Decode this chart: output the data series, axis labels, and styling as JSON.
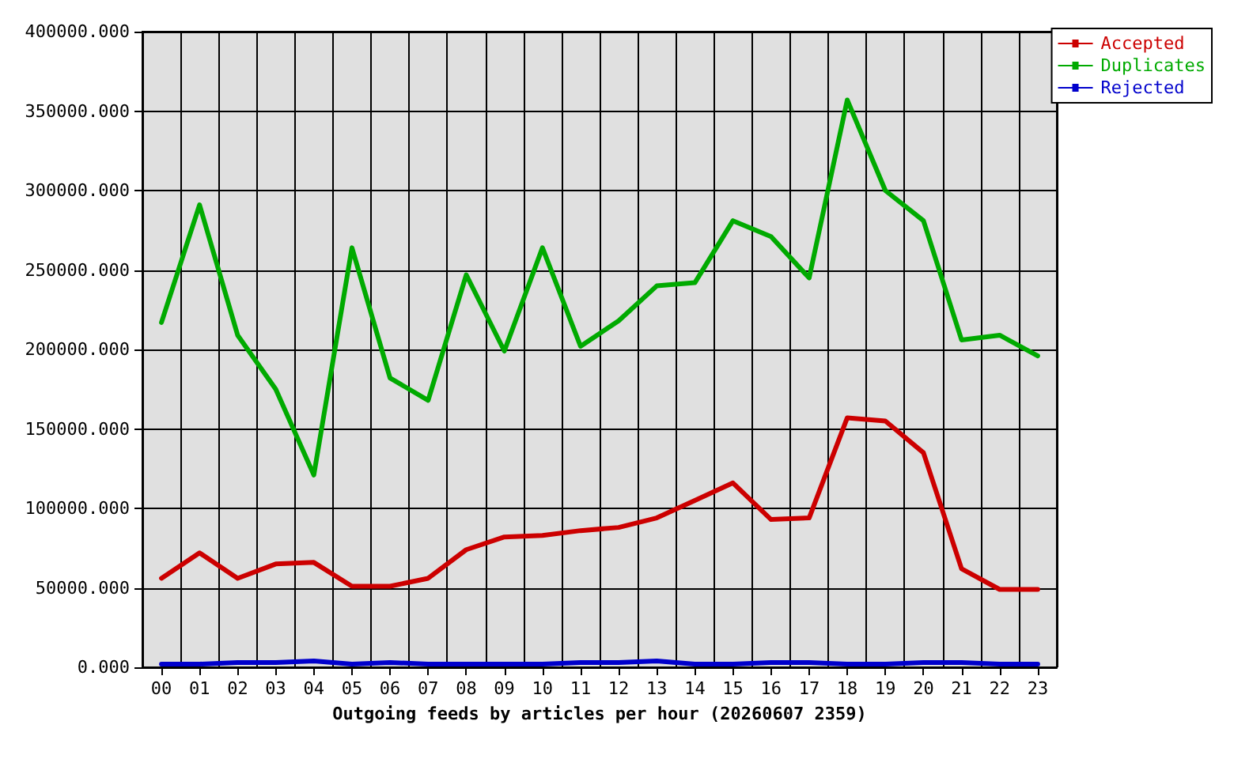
{
  "chart_data": {
    "type": "line",
    "xlabel": "Outgoing feeds by articles per hour (20260607 2359)",
    "categories": [
      "00",
      "01",
      "02",
      "03",
      "04",
      "05",
      "06",
      "07",
      "08",
      "09",
      "10",
      "11",
      "12",
      "13",
      "14",
      "15",
      "16",
      "17",
      "18",
      "19",
      "20",
      "21",
      "22",
      "23"
    ],
    "series": [
      {
        "name": "Accepted",
        "color": "#cc0000",
        "values": [
          56000,
          72000,
          56000,
          65000,
          66000,
          51000,
          51000,
          56000,
          74000,
          82000,
          83000,
          86000,
          88000,
          94000,
          105000,
          116000,
          93000,
          94000,
          157000,
          155000,
          135000,
          62000,
          49000,
          49000
        ]
      },
      {
        "name": "Duplicates",
        "color": "#00aa00",
        "values": [
          217000,
          291000,
          209000,
          175000,
          121000,
          264000,
          182000,
          168000,
          247000,
          199000,
          264000,
          202000,
          218000,
          240000,
          242000,
          281000,
          271000,
          245000,
          357000,
          300000,
          281000,
          206000,
          209000,
          196000
        ]
      },
      {
        "name": "Rejected",
        "color": "#0000cc",
        "values": [
          2000,
          2000,
          3000,
          3000,
          4000,
          2000,
          3000,
          2000,
          2000,
          2000,
          2000,
          3000,
          3000,
          4000,
          2000,
          2000,
          3000,
          3000,
          2000,
          2000,
          3000,
          3000,
          2000,
          2000
        ]
      }
    ],
    "ylim": [
      0,
      400000
    ],
    "yticks": [
      {
        "value": 0,
        "label": "0.000"
      },
      {
        "value": 50000,
        "label": "50000.000"
      },
      {
        "value": 100000,
        "label": "100000.000"
      },
      {
        "value": 150000,
        "label": "150000.000"
      },
      {
        "value": 200000,
        "label": "200000.000"
      },
      {
        "value": 250000,
        "label": "250000.000"
      },
      {
        "value": 300000,
        "label": "300000.000"
      },
      {
        "value": 350000,
        "label": "350000.000"
      },
      {
        "value": 400000,
        "label": "400000.000"
      }
    ],
    "grid": true,
    "legend": "top right",
    "marker": "none",
    "line_style": "solid"
  }
}
